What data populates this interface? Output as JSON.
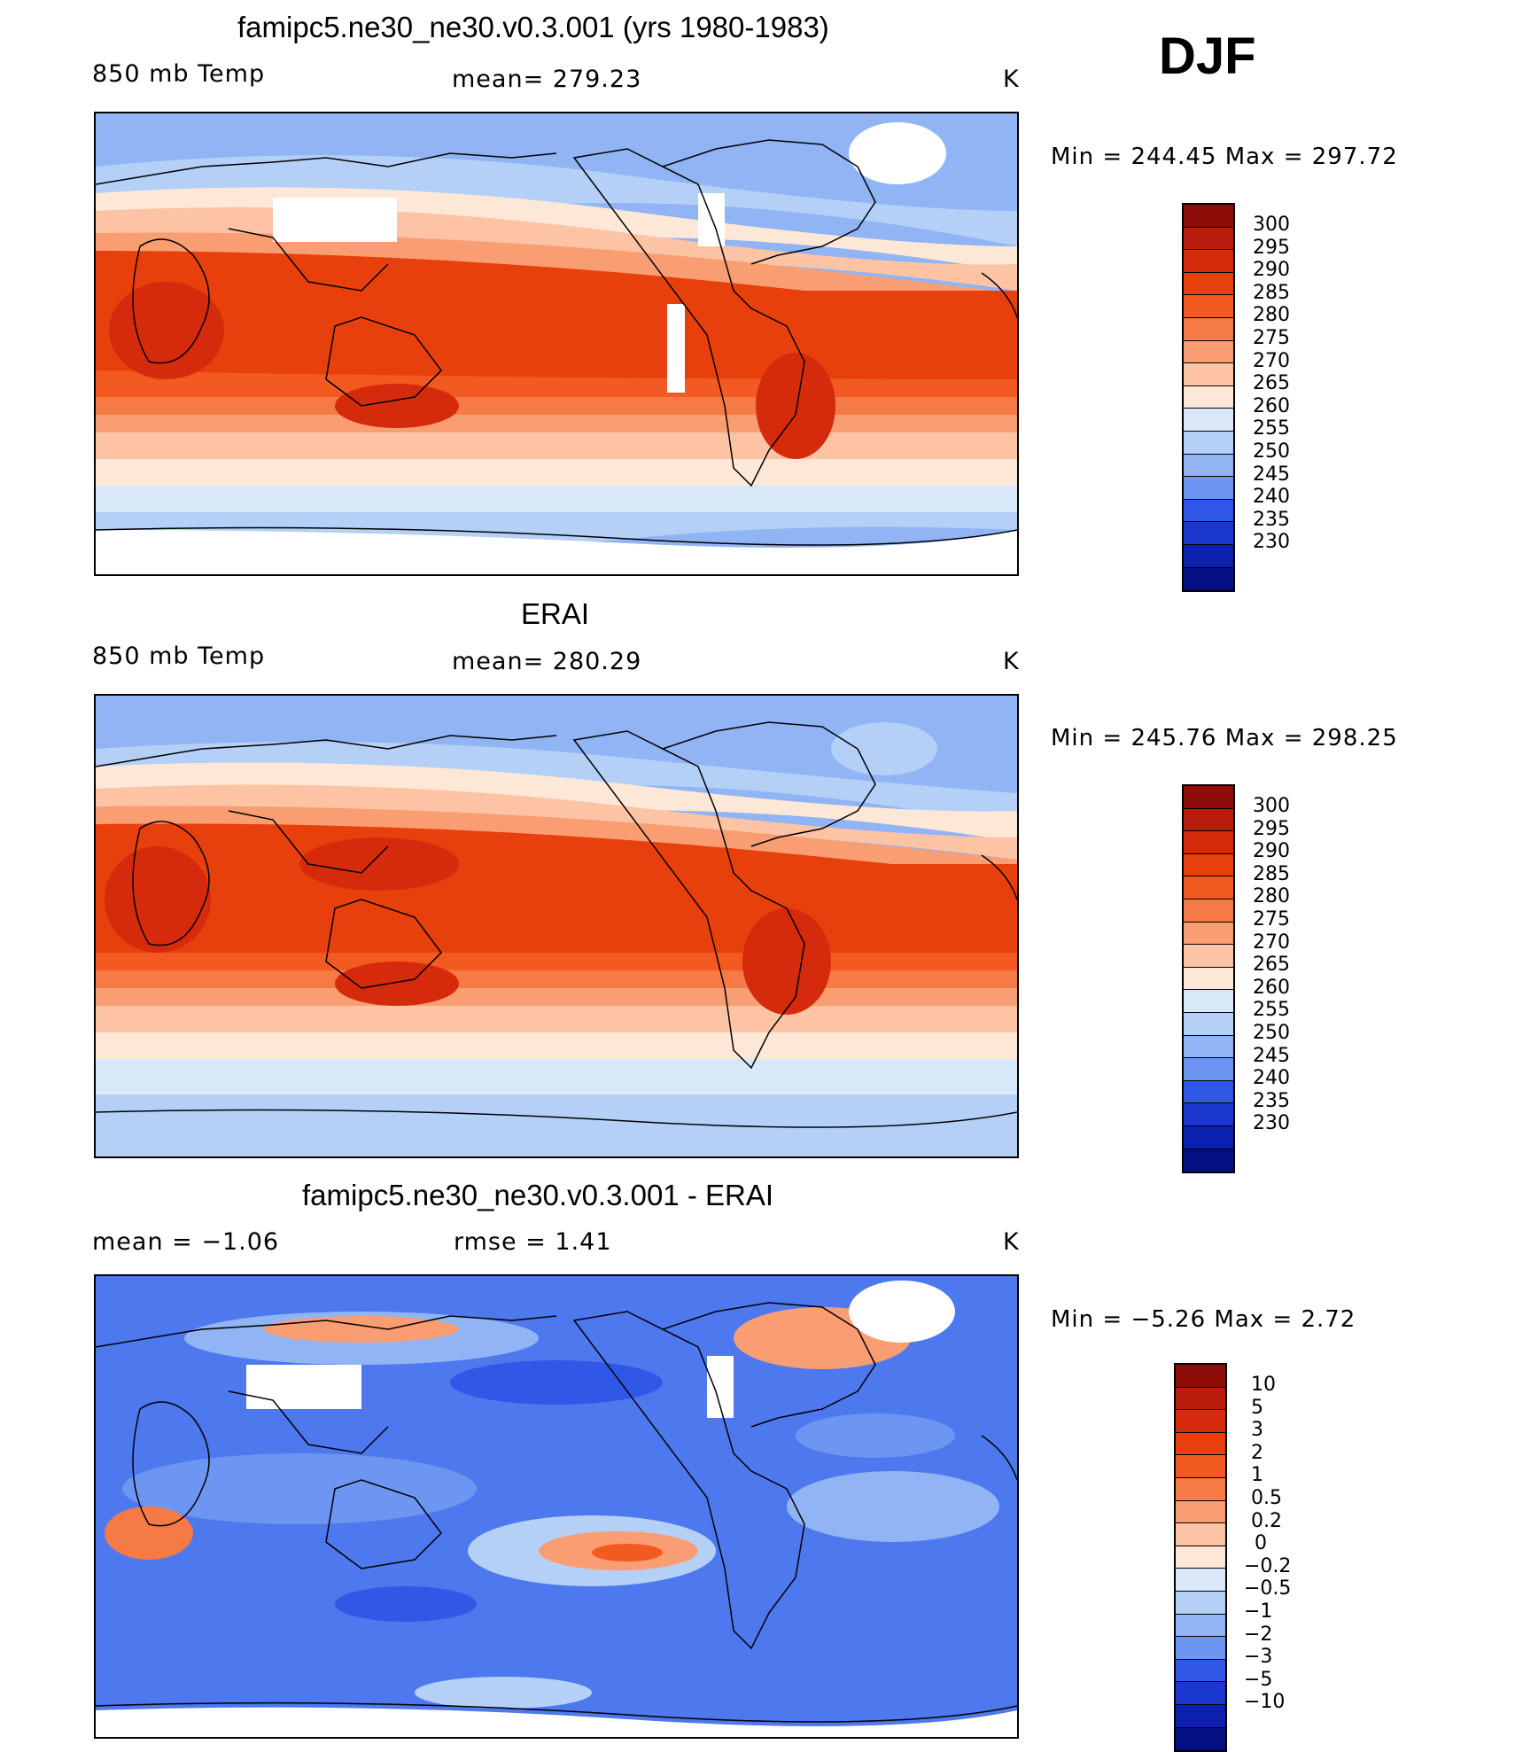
{
  "season": "DJF",
  "colors": {
    "abs_scale": [
      "#b81c0d",
      "#d52b0c",
      "#e8400d",
      "#f25a22",
      "#f67a45",
      "#f99e73",
      "#fcc3a4",
      "#fde8d8",
      "#d8e8f8",
      "#b4d0f6",
      "#90b4f4",
      "#6c96f2",
      "#4d78ee",
      "#2f58e6",
      "#1a38d0",
      "#0c20b0",
      "#041080"
    ],
    "diff_scale": [
      "#8e0c08",
      "#b81c0d",
      "#d52b0c",
      "#e8400d",
      "#f25a22",
      "#f67a45",
      "#f99e73",
      "#fcc3a4",
      "#fde8d8",
      "#d8e8f8",
      "#b4d0f6",
      "#90b4f4",
      "#6c96f2",
      "#4d78ee",
      "#2f58e6",
      "#1a38d0",
      "#0c20b0"
    ]
  },
  "panels": {
    "model": {
      "title": "famipc5.ne30_ne30.v0.3.001 (yrs 1980-1983)",
      "left_label": "850 mb Temp",
      "center_label": "mean= 279.23",
      "units": "K",
      "min_max": "Min  =  244.45  Max  =  297.72",
      "colorbar_ticks": [
        "300",
        "295",
        "290",
        "285",
        "280",
        "275",
        "270",
        "265",
        "260",
        "255",
        "250",
        "245",
        "240",
        "235",
        "230"
      ]
    },
    "obs": {
      "title": "ERAI",
      "left_label": "850 mb Temp",
      "center_label": "mean= 280.29",
      "units": "K",
      "min_max": "Min  =  245.76  Max  =  298.25",
      "colorbar_ticks": [
        "300",
        "295",
        "290",
        "285",
        "280",
        "275",
        "270",
        "265",
        "260",
        "255",
        "250",
        "245",
        "240",
        "235",
        "230"
      ]
    },
    "diff": {
      "title": "famipc5.ne30_ne30.v0.3.001 - ERAI",
      "left_label": "mean =   −1.06",
      "center_label": "rmse =    1.41",
      "units": "K",
      "min_max": "Min  =   −5.26  Max  =     2.72",
      "colorbar_ticks": [
        "10",
        "5",
        "3",
        "2",
        "1",
        "0.5",
        "0.2",
        "0",
        "−0.2",
        "−0.5",
        "−1",
        "−2",
        "−3",
        "−5",
        "−10"
      ]
    }
  }
}
